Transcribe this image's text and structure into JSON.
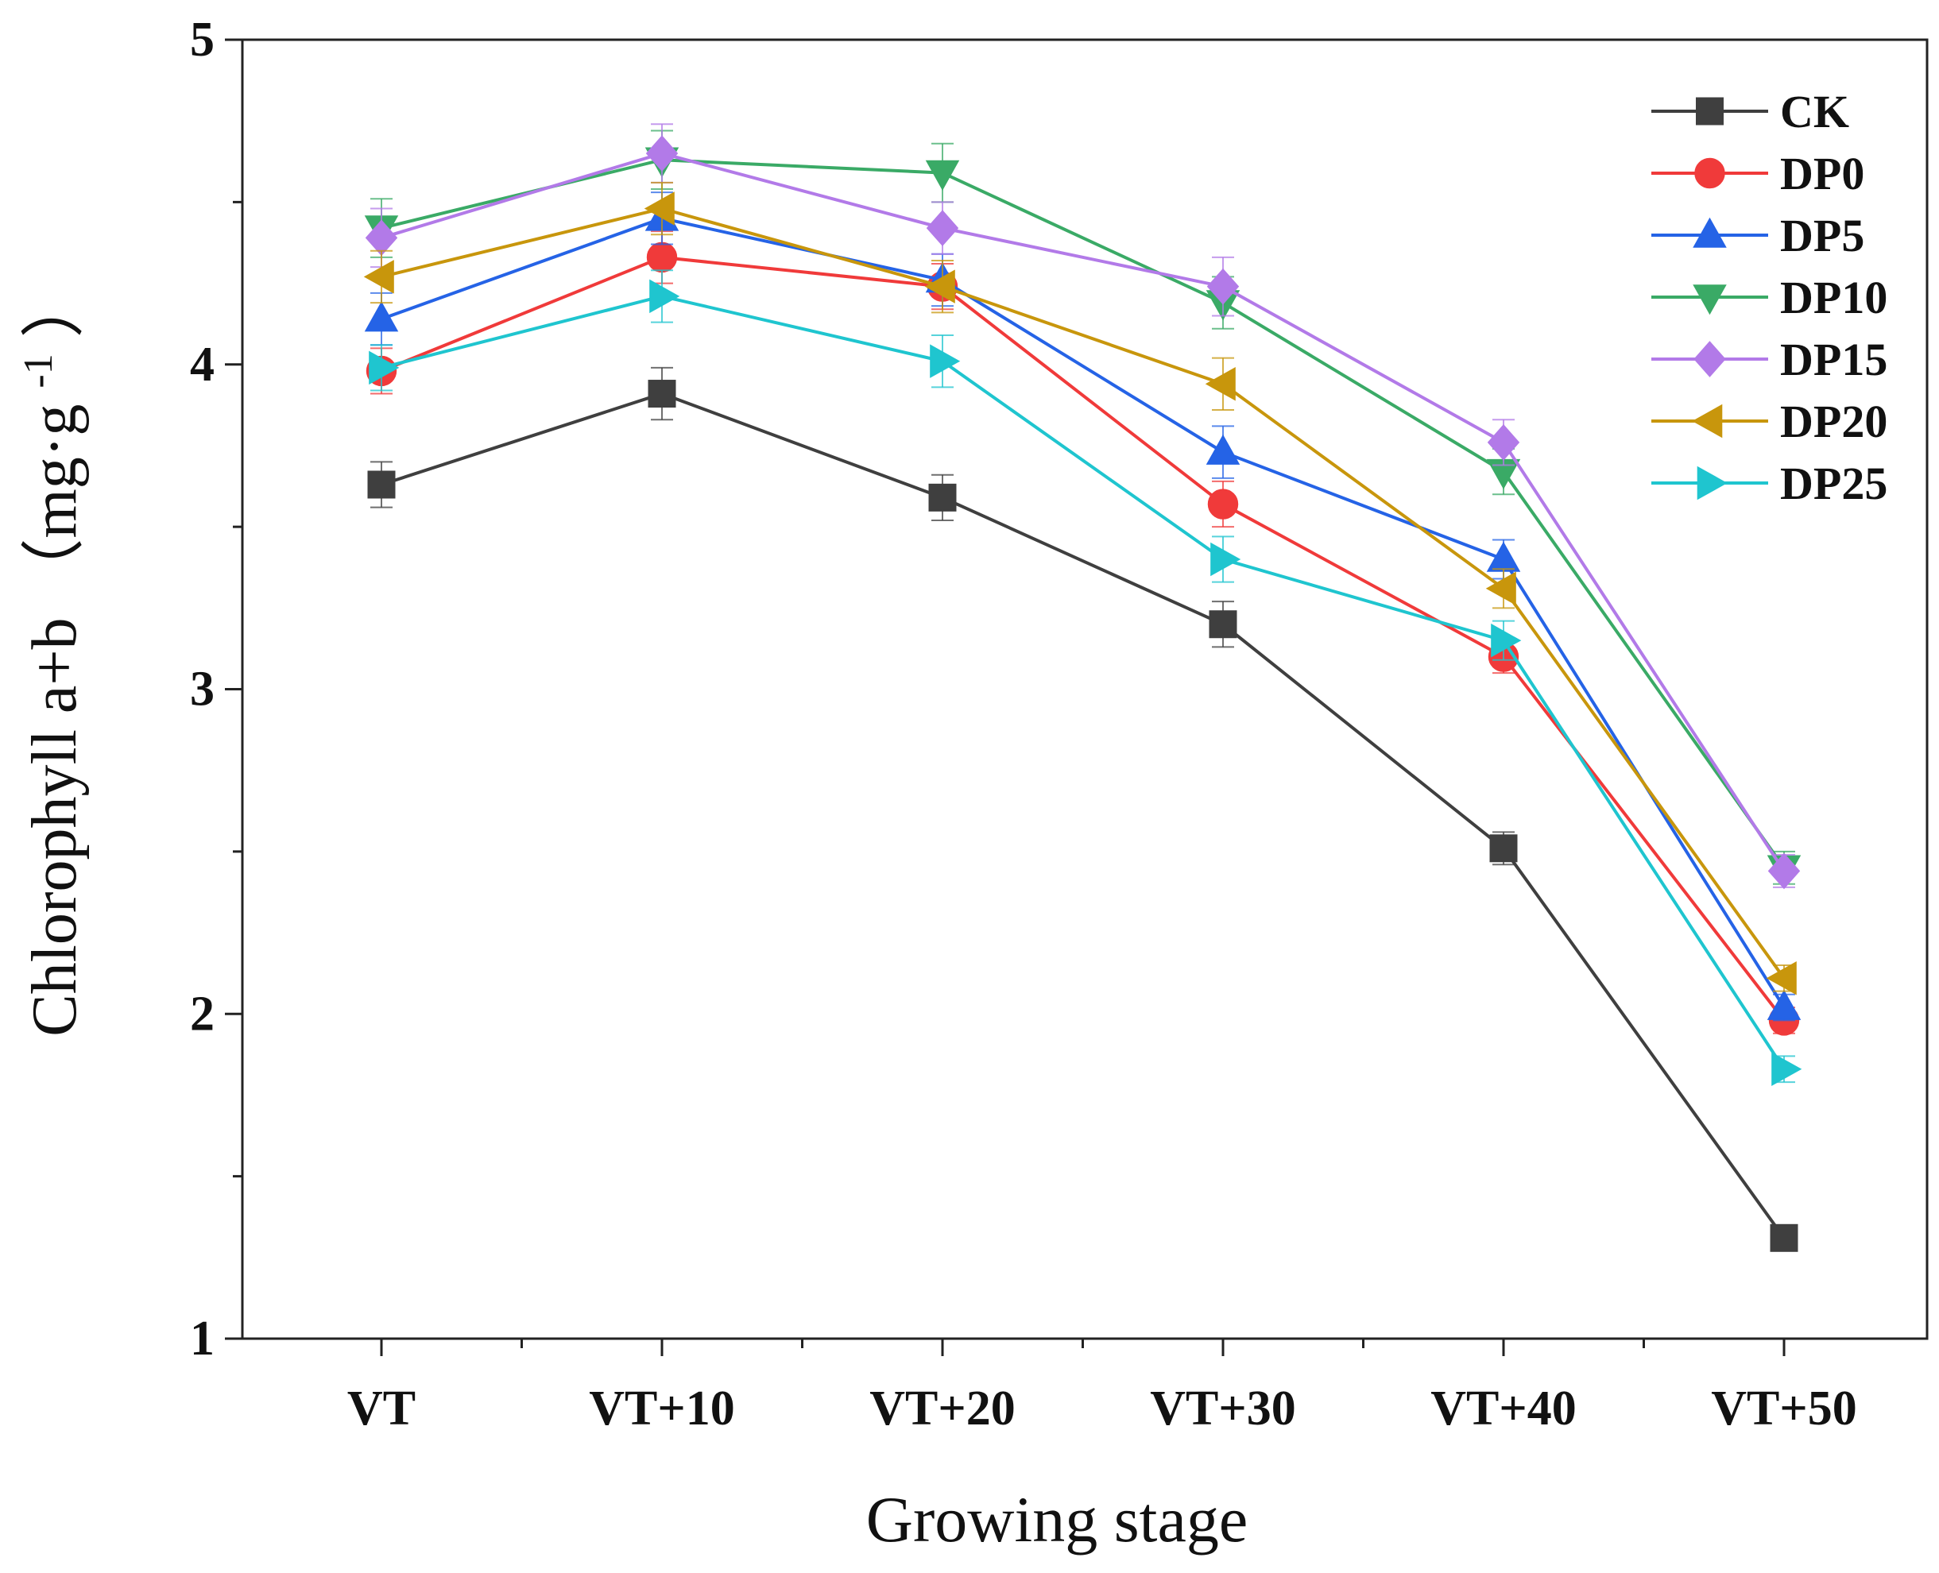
{
  "chart_data": {
    "type": "line",
    "xlabel": "Growing stage",
    "ylabel": {
      "main": "Chlorophyll a+b",
      "unit_open": "（mg·g",
      "unit_sup": "-1",
      "unit_close": "）"
    },
    "categories": [
      "VT",
      "VT+10",
      "VT+20",
      "VT+30",
      "VT+40",
      "VT+50"
    ],
    "ylim": [
      1,
      5
    ],
    "yticks": [
      "1",
      "2",
      "3",
      "4",
      "5"
    ],
    "legend_position": "top-right",
    "series": [
      {
        "name": "CK",
        "marker": "square",
        "color": "#3f3f3f",
        "values": [
          3.63,
          3.91,
          3.59,
          3.2,
          2.51,
          1.31
        ],
        "errors": [
          0.07,
          0.08,
          0.07,
          0.07,
          0.05,
          0.03
        ]
      },
      {
        "name": "DP0",
        "marker": "circle",
        "color": "#f03a3a",
        "values": [
          3.98,
          4.33,
          4.24,
          3.57,
          3.1,
          1.98
        ],
        "errors": [
          0.07,
          0.08,
          0.07,
          0.07,
          0.05,
          0.04
        ]
      },
      {
        "name": "DP5",
        "marker": "triangle-up",
        "color": "#2563e6",
        "values": [
          4.14,
          4.45,
          4.26,
          3.73,
          3.4,
          2.02
        ],
        "errors": [
          0.08,
          0.08,
          0.08,
          0.08,
          0.06,
          0.04
        ]
      },
      {
        "name": "DP10",
        "marker": "triangle-down",
        "color": "#3aaa66",
        "values": [
          4.42,
          4.63,
          4.59,
          4.19,
          3.67,
          2.45
        ],
        "errors": [
          0.09,
          0.09,
          0.09,
          0.08,
          0.07,
          0.05
        ]
      },
      {
        "name": "DP15",
        "marker": "diamond",
        "color": "#b27ae8",
        "values": [
          4.39,
          4.65,
          4.42,
          4.24,
          3.76,
          2.44
        ],
        "errors": [
          0.09,
          0.09,
          0.08,
          0.09,
          0.07,
          0.05
        ]
      },
      {
        "name": "DP20",
        "marker": "triangle-left",
        "color": "#c8960c",
        "values": [
          4.27,
          4.48,
          4.24,
          3.94,
          3.31,
          2.11
        ],
        "errors": [
          0.08,
          0.08,
          0.08,
          0.08,
          0.06,
          0.04
        ]
      },
      {
        "name": "DP25",
        "marker": "triangle-right",
        "color": "#1fc5cf",
        "values": [
          3.99,
          4.21,
          4.01,
          3.4,
          3.15,
          1.83
        ],
        "errors": [
          0.07,
          0.08,
          0.08,
          0.07,
          0.06,
          0.04
        ]
      }
    ]
  }
}
